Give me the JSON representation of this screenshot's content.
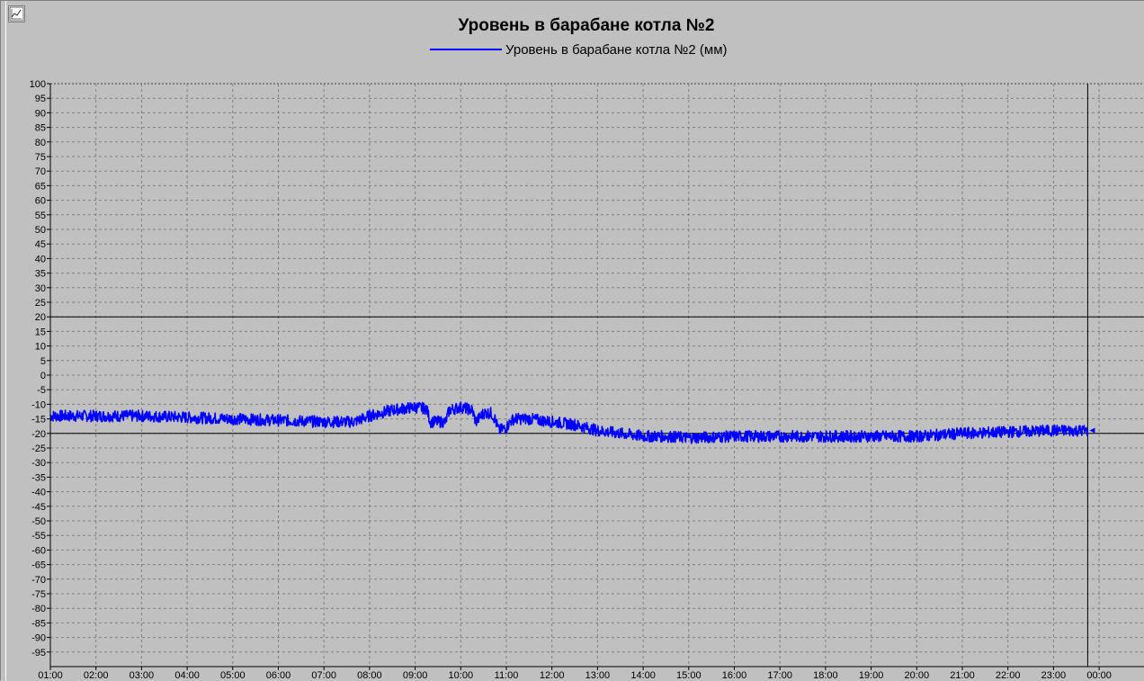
{
  "chart_data": {
    "type": "line",
    "title": "Уровень в барабане котла №2",
    "xlabel": "",
    "ylabel": "",
    "ylim": [
      -100,
      100
    ],
    "xlim": [
      "01:00",
      "00:15"
    ],
    "grid": true,
    "legend_position": "top-center",
    "x_tick_labels": [
      "01:00",
      "02:00",
      "03:00",
      "04:00",
      "05:00",
      "06:00",
      "07:00",
      "08:00",
      "09:00",
      "10:00",
      "11:00",
      "12:00",
      "13:00",
      "14:00",
      "15:00",
      "16:00",
      "17:00",
      "18:00",
      "19:00",
      "20:00",
      "21:00",
      "22:00",
      "23:00",
      "00:00"
    ],
    "y_tick_labels": [
      "100",
      "95",
      "90",
      "85",
      "80",
      "75",
      "70",
      "65",
      "60",
      "55",
      "50",
      "45",
      "40",
      "35",
      "30",
      "25",
      "20",
      "15",
      "10",
      "5",
      "0",
      "-5",
      "-10",
      "-15",
      "-20",
      "-25",
      "-30",
      "-35",
      "-40",
      "-45",
      "-50",
      "-55",
      "-60",
      "-65",
      "-70",
      "-75",
      "-80",
      "-85",
      "-90",
      "-95"
    ],
    "reference_lines": [
      20,
      -20
    ],
    "cursor_time": "23:45",
    "series": [
      {
        "name": "Уровень в барабане котла №2 (мм)",
        "color": "#0000ff",
        "x": [
          "01:00",
          "02:00",
          "03:00",
          "04:00",
          "05:00",
          "06:00",
          "07:00",
          "07:40",
          "08:00",
          "08:30",
          "09:00",
          "09:15",
          "09:20",
          "09:40",
          "09:45",
          "10:00",
          "10:15",
          "10:20",
          "10:30",
          "10:40",
          "10:45",
          "10:50",
          "11:00",
          "11:05",
          "11:10",
          "11:20",
          "11:30",
          "12:00",
          "12:30",
          "13:00",
          "13:30",
          "14:00",
          "14:30",
          "15:00",
          "16:00",
          "17:00",
          "18:00",
          "19:00",
          "20:00",
          "21:00",
          "22:00",
          "23:00",
          "23:45"
        ],
        "values": [
          -14,
          -14,
          -14,
          -14.5,
          -15,
          -15.5,
          -16,
          -16,
          -14,
          -12,
          -11,
          -11.5,
          -16,
          -16,
          -12,
          -11,
          -12,
          -16,
          -13,
          -13,
          -15,
          -19,
          -18,
          -16,
          -15,
          -15,
          -15,
          -16,
          -17,
          -19,
          -20,
          -21,
          -21,
          -21.5,
          -21,
          -21,
          -21,
          -21,
          -21,
          -20,
          -19.5,
          -19,
          -19
        ]
      }
    ]
  }
}
